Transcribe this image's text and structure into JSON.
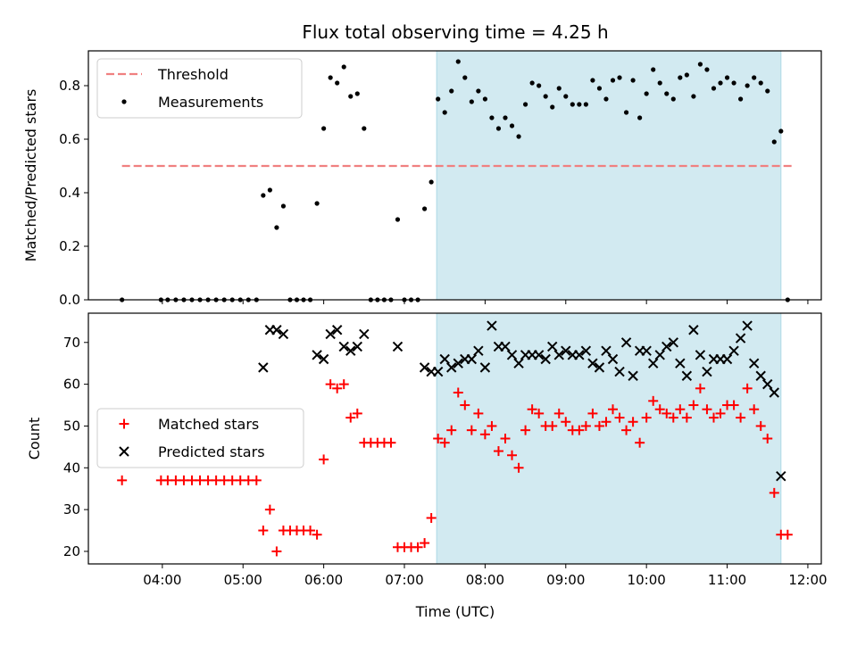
{
  "title": "Flux total observing time = 4.25 h",
  "xlabel": "Time (UTC)",
  "chart_data": [
    {
      "type": "scatter",
      "ylabel": "Matched/Predicted stars",
      "ylim": [
        0,
        0.93
      ],
      "yticks": [
        "0.0",
        "0.2",
        "0.4",
        "0.6",
        "0.8"
      ],
      "ytick_values": [
        0,
        0.2,
        0.4,
        0.6,
        0.8
      ],
      "legend": {
        "placement": "upper-left",
        "entries": [
          {
            "label": "Threshold",
            "marker": "dashed-line",
            "color": "#f08080"
          },
          {
            "label": "Measurements",
            "marker": "dot",
            "color": "#000000"
          }
        ]
      },
      "threshold": {
        "x": [
          "03:30",
          "11:50"
        ],
        "y": 0.5,
        "color": "#f08080"
      },
      "observing_window": {
        "x": [
          "07:24",
          "11:40"
        ],
        "color": "#add8e6"
      },
      "measurements": [
        [
          "03:30",
          0.0
        ],
        [
          "03:59",
          0.0
        ],
        [
          "04:04",
          0.0
        ],
        [
          "04:10",
          0.0
        ],
        [
          "04:16",
          0.0
        ],
        [
          "04:22",
          0.0
        ],
        [
          "04:28",
          0.0
        ],
        [
          "04:34",
          0.0
        ],
        [
          "04:40",
          0.0
        ],
        [
          "04:46",
          0.0
        ],
        [
          "04:52",
          0.0
        ],
        [
          "04:58",
          0.0
        ],
        [
          "05:04",
          0.0
        ],
        [
          "05:10",
          0.0
        ],
        [
          "05:15",
          0.39
        ],
        [
          "05:20",
          0.41
        ],
        [
          "05:25",
          0.27
        ],
        [
          "05:30",
          0.35
        ],
        [
          "05:35",
          0.0
        ],
        [
          "05:40",
          0.0
        ],
        [
          "05:45",
          0.0
        ],
        [
          "05:50",
          0.0
        ],
        [
          "05:55",
          0.36
        ],
        [
          "06:00",
          0.64
        ],
        [
          "06:05",
          0.83
        ],
        [
          "06:10",
          0.81
        ],
        [
          "06:15",
          0.87
        ],
        [
          "06:20",
          0.76
        ],
        [
          "06:25",
          0.77
        ],
        [
          "06:30",
          0.64
        ],
        [
          "06:35",
          0.0
        ],
        [
          "06:40",
          0.0
        ],
        [
          "06:45",
          0.0
        ],
        [
          "06:50",
          0.0
        ],
        [
          "06:55",
          0.3
        ],
        [
          "07:00",
          0.0
        ],
        [
          "07:05",
          0.0
        ],
        [
          "07:10",
          0.0
        ],
        [
          "07:15",
          0.34
        ],
        [
          "07:20",
          0.44
        ],
        [
          "07:25",
          0.75
        ],
        [
          "07:30",
          0.7
        ],
        [
          "07:35",
          0.78
        ],
        [
          "07:40",
          0.89
        ],
        [
          "07:45",
          0.83
        ],
        [
          "07:50",
          0.74
        ],
        [
          "07:55",
          0.78
        ],
        [
          "08:00",
          0.75
        ],
        [
          "08:05",
          0.68
        ],
        [
          "08:10",
          0.64
        ],
        [
          "08:15",
          0.68
        ],
        [
          "08:20",
          0.65
        ],
        [
          "08:25",
          0.61
        ],
        [
          "08:30",
          0.73
        ],
        [
          "08:35",
          0.81
        ],
        [
          "08:40",
          0.8
        ],
        [
          "08:45",
          0.76
        ],
        [
          "08:50",
          0.72
        ],
        [
          "08:55",
          0.79
        ],
        [
          "09:00",
          0.76
        ],
        [
          "09:05",
          0.73
        ],
        [
          "09:10",
          0.73
        ],
        [
          "09:15",
          0.73
        ],
        [
          "09:20",
          0.82
        ],
        [
          "09:25",
          0.79
        ],
        [
          "09:30",
          0.75
        ],
        [
          "09:35",
          0.82
        ],
        [
          "09:40",
          0.83
        ],
        [
          "09:45",
          0.7
        ],
        [
          "09:50",
          0.82
        ],
        [
          "09:55",
          0.68
        ],
        [
          "10:00",
          0.77
        ],
        [
          "10:05",
          0.86
        ],
        [
          "10:10",
          0.81
        ],
        [
          "10:15",
          0.77
        ],
        [
          "10:20",
          0.75
        ],
        [
          "10:25",
          0.83
        ],
        [
          "10:30",
          0.84
        ],
        [
          "10:35",
          0.76
        ],
        [
          "10:40",
          0.88
        ],
        [
          "10:45",
          0.86
        ],
        [
          "10:50",
          0.79
        ],
        [
          "10:55",
          0.81
        ],
        [
          "11:00",
          0.83
        ],
        [
          "11:05",
          0.81
        ],
        [
          "11:10",
          0.75
        ],
        [
          "11:15",
          0.8
        ],
        [
          "11:20",
          0.83
        ],
        [
          "11:25",
          0.81
        ],
        [
          "11:30",
          0.78
        ],
        [
          "11:35",
          0.59
        ],
        [
          "11:40",
          0.63
        ],
        [
          "11:45",
          0.0
        ]
      ]
    },
    {
      "type": "scatter",
      "ylabel": "Count",
      "ylim": [
        17,
        77
      ],
      "yticks": [
        "20",
        "30",
        "40",
        "50",
        "60",
        "70"
      ],
      "ytick_values": [
        20,
        30,
        40,
        50,
        60,
        70
      ],
      "xticks": [
        "04:00",
        "05:00",
        "06:00",
        "07:00",
        "08:00",
        "09:00",
        "10:00",
        "11:00",
        "12:00"
      ],
      "xlim": [
        "03:05",
        "12:10"
      ],
      "legend": {
        "placement": "center-left",
        "entries": [
          {
            "label": "Matched stars",
            "marker": "plus",
            "color": "#ff0000"
          },
          {
            "label": "Predicted stars",
            "marker": "x",
            "color": "#000000"
          }
        ]
      },
      "matched": [
        [
          "03:30",
          37
        ],
        [
          "03:59",
          37
        ],
        [
          "04:04",
          37
        ],
        [
          "04:10",
          37
        ],
        [
          "04:16",
          37
        ],
        [
          "04:22",
          37
        ],
        [
          "04:28",
          37
        ],
        [
          "04:34",
          37
        ],
        [
          "04:40",
          37
        ],
        [
          "04:46",
          37
        ],
        [
          "04:52",
          37
        ],
        [
          "04:58",
          37
        ],
        [
          "05:04",
          37
        ],
        [
          "05:10",
          37
        ],
        [
          "05:15",
          25
        ],
        [
          "05:20",
          30
        ],
        [
          "05:25",
          20
        ],
        [
          "05:30",
          25
        ],
        [
          "05:35",
          25
        ],
        [
          "05:40",
          25
        ],
        [
          "05:45",
          25
        ],
        [
          "05:50",
          25
        ],
        [
          "05:55",
          24
        ],
        [
          "06:00",
          42
        ],
        [
          "06:05",
          60
        ],
        [
          "06:10",
          59
        ],
        [
          "06:15",
          60
        ],
        [
          "06:20",
          52
        ],
        [
          "06:25",
          53
        ],
        [
          "06:30",
          46
        ],
        [
          "06:35",
          46
        ],
        [
          "06:40",
          46
        ],
        [
          "06:45",
          46
        ],
        [
          "06:50",
          46
        ],
        [
          "06:55",
          21
        ],
        [
          "07:00",
          21
        ],
        [
          "07:05",
          21
        ],
        [
          "07:10",
          21
        ],
        [
          "07:15",
          22
        ],
        [
          "07:20",
          28
        ],
        [
          "07:25",
          47
        ],
        [
          "07:30",
          46
        ],
        [
          "07:35",
          49
        ],
        [
          "07:40",
          58
        ],
        [
          "07:45",
          55
        ],
        [
          "07:50",
          49
        ],
        [
          "07:55",
          53
        ],
        [
          "08:00",
          48
        ],
        [
          "08:05",
          50
        ],
        [
          "08:10",
          44
        ],
        [
          "08:15",
          47
        ],
        [
          "08:20",
          43
        ],
        [
          "08:25",
          40
        ],
        [
          "08:30",
          49
        ],
        [
          "08:35",
          54
        ],
        [
          "08:40",
          53
        ],
        [
          "08:45",
          50
        ],
        [
          "08:50",
          50
        ],
        [
          "08:55",
          53
        ],
        [
          "09:00",
          51
        ],
        [
          "09:05",
          49
        ],
        [
          "09:10",
          49
        ],
        [
          "09:15",
          50
        ],
        [
          "09:20",
          53
        ],
        [
          "09:25",
          50
        ],
        [
          "09:30",
          51
        ],
        [
          "09:35",
          54
        ],
        [
          "09:40",
          52
        ],
        [
          "09:45",
          49
        ],
        [
          "09:50",
          51
        ],
        [
          "09:55",
          46
        ],
        [
          "10:00",
          52
        ],
        [
          "10:05",
          56
        ],
        [
          "10:10",
          54
        ],
        [
          "10:15",
          53
        ],
        [
          "10:20",
          52
        ],
        [
          "10:25",
          54
        ],
        [
          "10:30",
          52
        ],
        [
          "10:35",
          55
        ],
        [
          "10:40",
          59
        ],
        [
          "10:45",
          54
        ],
        [
          "10:50",
          52
        ],
        [
          "10:55",
          53
        ],
        [
          "11:00",
          55
        ],
        [
          "11:05",
          55
        ],
        [
          "11:10",
          52
        ],
        [
          "11:15",
          59
        ],
        [
          "11:20",
          54
        ],
        [
          "11:25",
          50
        ],
        [
          "11:30",
          47
        ],
        [
          "11:35",
          34
        ],
        [
          "11:40",
          24
        ],
        [
          "11:45",
          24
        ]
      ],
      "predicted": [
        [
          "05:15",
          64
        ],
        [
          "05:20",
          73
        ],
        [
          "05:25",
          73
        ],
        [
          "05:30",
          72
        ],
        [
          "05:55",
          67
        ],
        [
          "06:00",
          66
        ],
        [
          "06:05",
          72
        ],
        [
          "06:10",
          73
        ],
        [
          "06:15",
          69
        ],
        [
          "06:20",
          68
        ],
        [
          "06:25",
          69
        ],
        [
          "06:30",
          72
        ],
        [
          "06:55",
          69
        ],
        [
          "07:15",
          64
        ],
        [
          "07:20",
          63
        ],
        [
          "07:25",
          63
        ],
        [
          "07:30",
          66
        ],
        [
          "07:35",
          64
        ],
        [
          "07:40",
          65
        ],
        [
          "07:45",
          66
        ],
        [
          "07:50",
          66
        ],
        [
          "07:55",
          68
        ],
        [
          "08:00",
          64
        ],
        [
          "08:05",
          74
        ],
        [
          "08:10",
          69
        ],
        [
          "08:15",
          69
        ],
        [
          "08:20",
          67
        ],
        [
          "08:25",
          65
        ],
        [
          "08:30",
          67
        ],
        [
          "08:35",
          67
        ],
        [
          "08:40",
          67
        ],
        [
          "08:45",
          66
        ],
        [
          "08:50",
          69
        ],
        [
          "08:55",
          67
        ],
        [
          "09:00",
          68
        ],
        [
          "09:05",
          67
        ],
        [
          "09:10",
          67
        ],
        [
          "09:15",
          68
        ],
        [
          "09:20",
          65
        ],
        [
          "09:25",
          64
        ],
        [
          "09:30",
          68
        ],
        [
          "09:35",
          66
        ],
        [
          "09:40",
          63
        ],
        [
          "09:45",
          70
        ],
        [
          "09:50",
          62
        ],
        [
          "09:55",
          68
        ],
        [
          "10:00",
          68
        ],
        [
          "10:05",
          65
        ],
        [
          "10:10",
          67
        ],
        [
          "10:15",
          69
        ],
        [
          "10:20",
          70
        ],
        [
          "10:25",
          65
        ],
        [
          "10:30",
          62
        ],
        [
          "10:35",
          73
        ],
        [
          "10:40",
          67
        ],
        [
          "10:45",
          63
        ],
        [
          "10:50",
          66
        ],
        [
          "10:55",
          66
        ],
        [
          "11:00",
          66
        ],
        [
          "11:05",
          68
        ],
        [
          "11:10",
          71
        ],
        [
          "11:15",
          74
        ],
        [
          "11:20",
          65
        ],
        [
          "11:25",
          62
        ],
        [
          "11:30",
          60
        ],
        [
          "11:35",
          58
        ],
        [
          "11:40",
          38
        ]
      ]
    }
  ]
}
